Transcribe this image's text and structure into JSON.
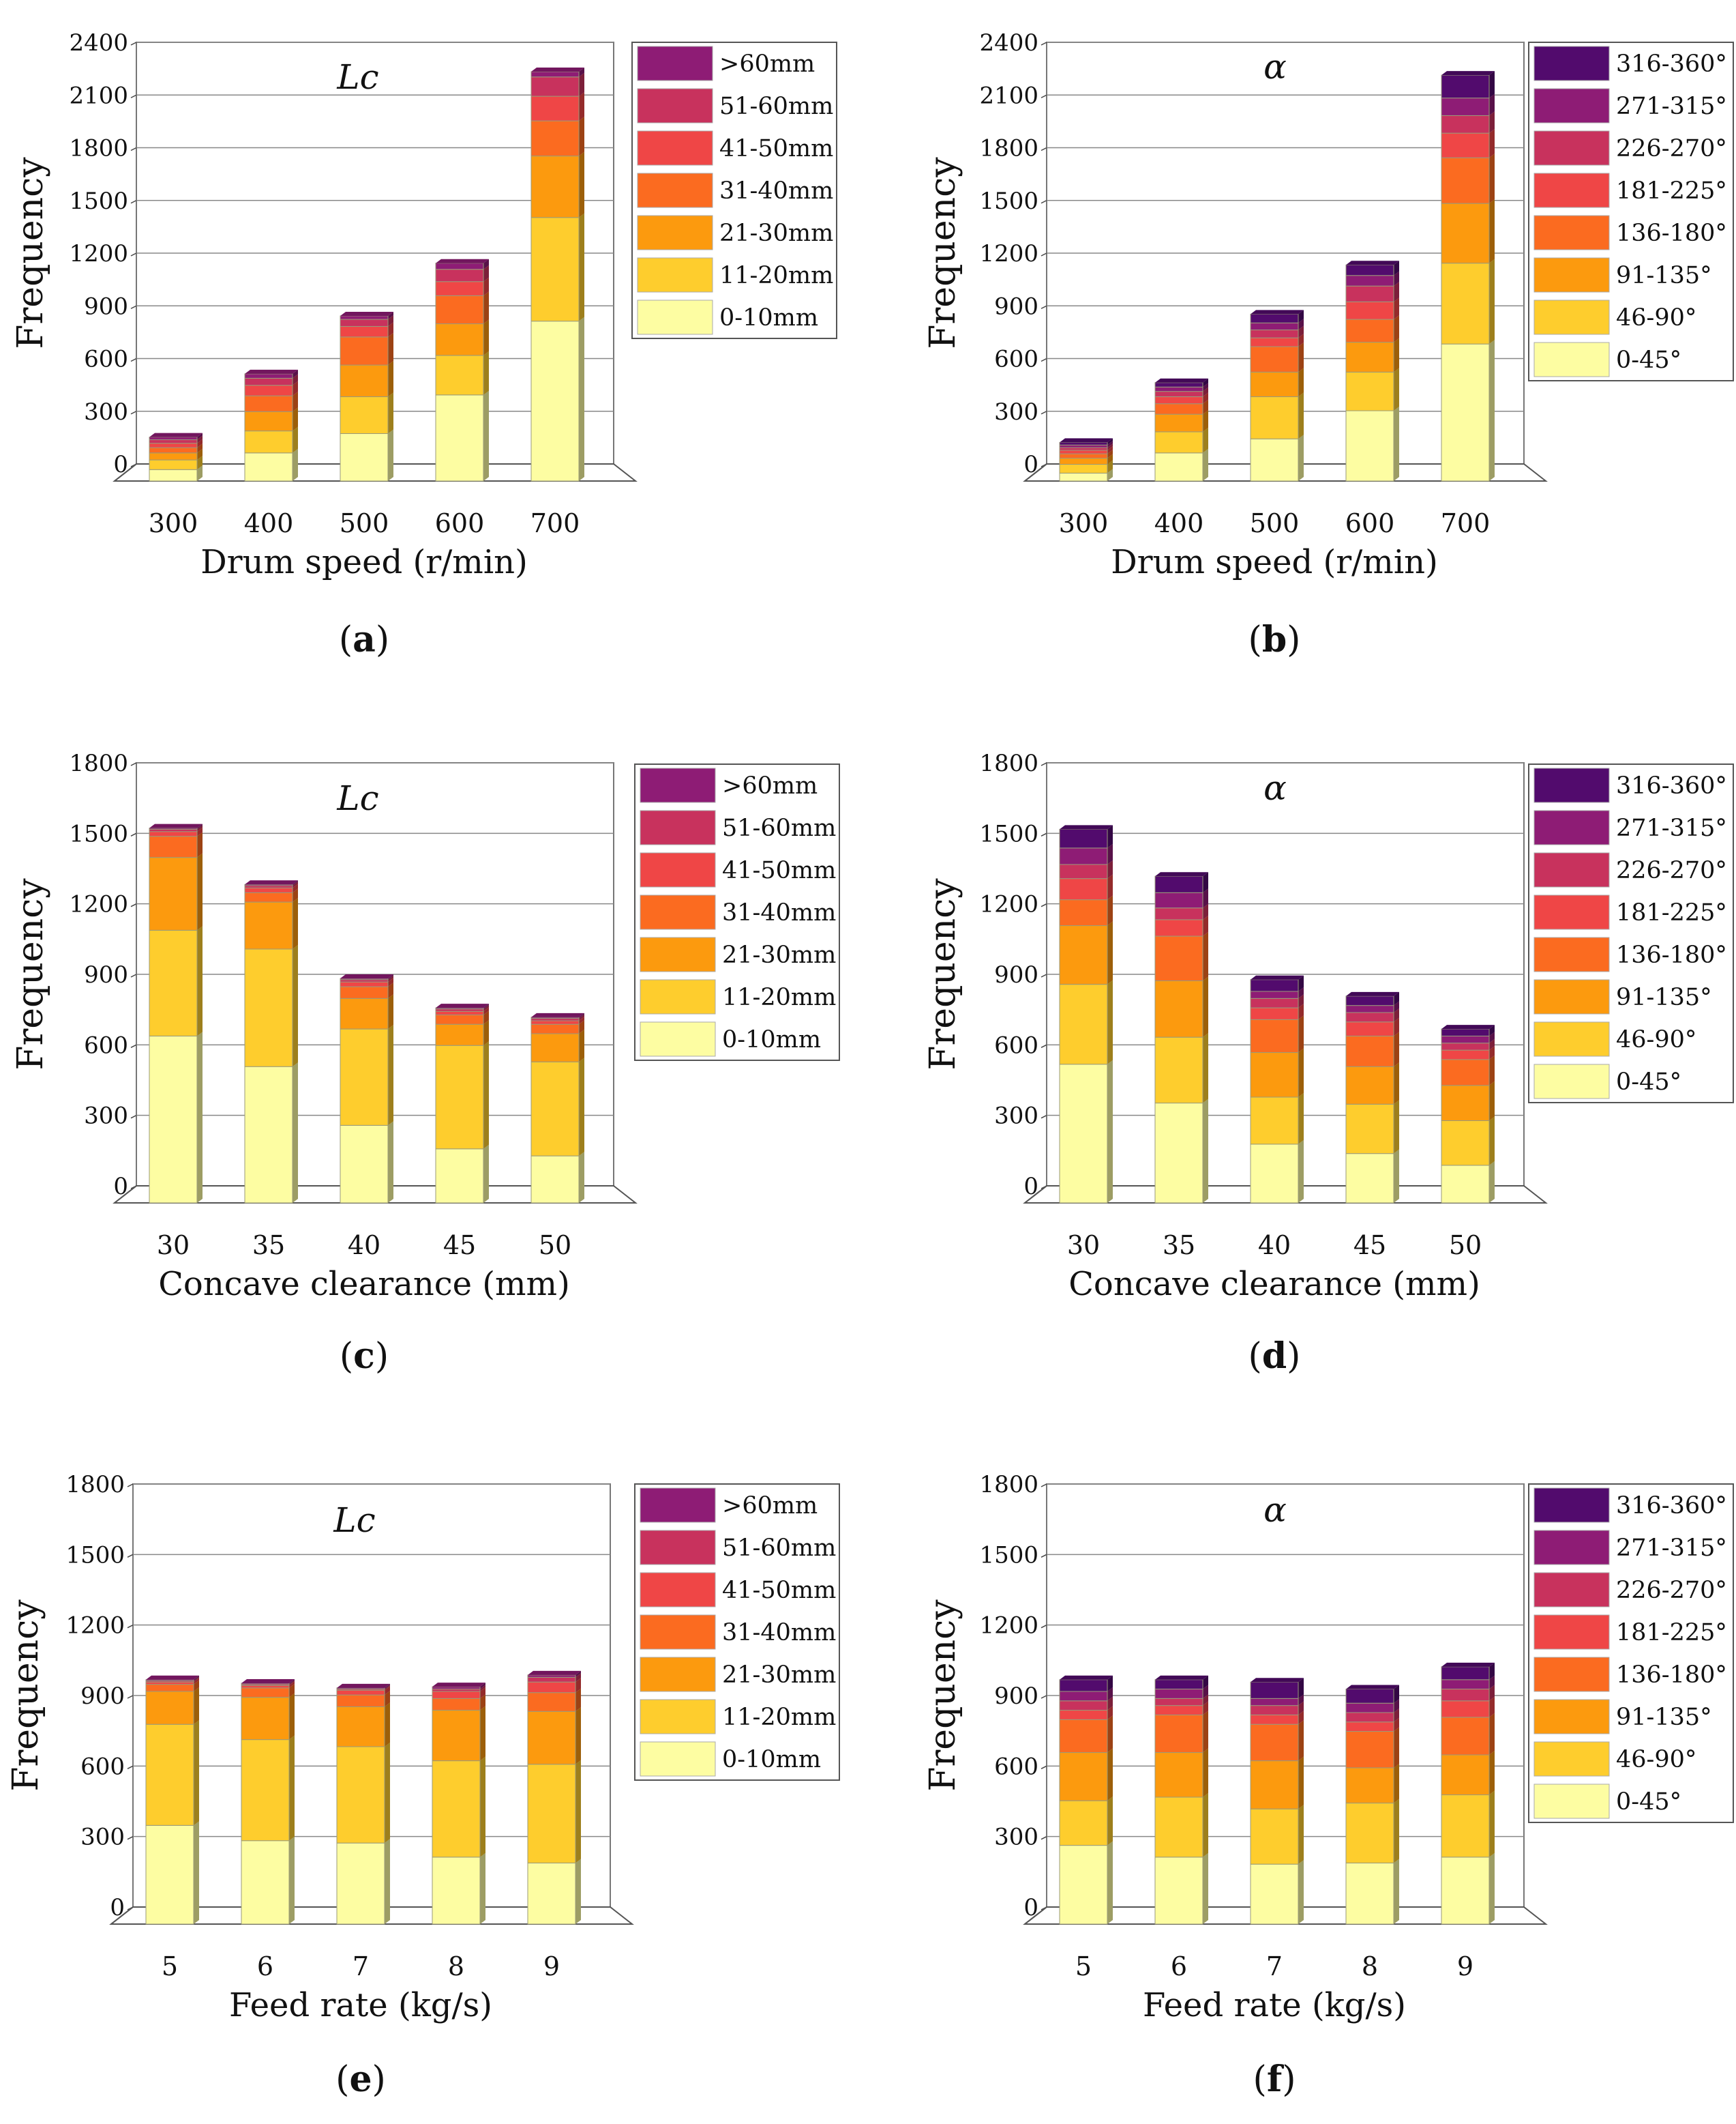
{
  "legend_lc": [
    ">60mm",
    "51-60mm",
    "41-50mm",
    "31-40mm",
    "21-30mm",
    "11-20mm",
    "0-10mm"
  ],
  "legend_alpha": [
    "316-360°",
    "271-315°",
    "226-270°",
    "181-225°",
    "136-180°",
    "91-135°",
    "46-90°",
    "0-45°"
  ],
  "colors_lc": [
    "#fdfda2",
    "#fecd2d",
    "#fc9a0e",
    "#fb6b20",
    "#ef4646",
    "#c8325d",
    "#8e1c75"
  ],
  "colors_alpha": [
    "#fdfda2",
    "#fecd2d",
    "#fc9a0e",
    "#fb6b20",
    "#ef4646",
    "#c8325d",
    "#8e1c75",
    "#520b6d"
  ],
  "ylabel": "Frequency",
  "chart_data": [
    {
      "type": "bar",
      "id": "a",
      "title": "Lc",
      "xlabel": "Drum speed (r/min)",
      "ylabel": "Frequency",
      "caption": {
        "open": "(",
        "letter": "a",
        "close": ")"
      },
      "categories": [
        "300",
        "400",
        "500",
        "600",
        "700"
      ],
      "yticks": [
        "0",
        "300",
        "600",
        "900",
        "1200",
        "1500",
        "1800",
        "2100",
        "2400"
      ],
      "ylim": [
        0,
        2400
      ],
      "series": [
        {
          "name": "0-10mm",
          "values": [
            65,
            160,
            270,
            490,
            910
          ]
        },
        {
          "name": "11-20mm",
          "values": [
            55,
            125,
            210,
            225,
            590
          ]
        },
        {
          "name": "21-30mm",
          "values": [
            40,
            110,
            180,
            180,
            350
          ]
        },
        {
          "name": "31-40mm",
          "values": [
            30,
            90,
            160,
            160,
            200
          ]
        },
        {
          "name": "41-50mm",
          "values": [
            25,
            60,
            60,
            80,
            140
          ]
        },
        {
          "name": "51-60mm",
          "values": [
            20,
            40,
            40,
            70,
            110
          ]
        },
        {
          "name": ">60mm",
          "values": [
            15,
            25,
            20,
            35,
            30
          ]
        }
      ]
    },
    {
      "type": "bar",
      "id": "b",
      "title": "α",
      "xlabel": "Drum speed (r/min)",
      "ylabel": "Frequency",
      "caption": {
        "open": "(",
        "letter": "b",
        "close": ")"
      },
      "categories": [
        "300",
        "400",
        "500",
        "600",
        "700"
      ],
      "yticks": [
        "0",
        "300",
        "600",
        "900",
        "1200",
        "1500",
        "1800",
        "2100",
        "2400"
      ],
      "ylim": [
        0,
        2400
      ],
      "series": [
        {
          "name": "0-45°",
          "values": [
            45,
            160,
            240,
            400,
            780
          ]
        },
        {
          "name": "46-90°",
          "values": [
            50,
            120,
            240,
            220,
            460
          ]
        },
        {
          "name": "91-135°",
          "values": [
            35,
            100,
            140,
            170,
            340
          ]
        },
        {
          "name": "136-180°",
          "values": [
            25,
            60,
            145,
            130,
            260
          ]
        },
        {
          "name": "181-225°",
          "values": [
            20,
            40,
            50,
            100,
            140
          ]
        },
        {
          "name": "226-270°",
          "values": [
            15,
            30,
            45,
            90,
            100
          ]
        },
        {
          "name": "271-315°",
          "values": [
            15,
            25,
            40,
            60,
            100
          ]
        },
        {
          "name": "316-360°",
          "values": [
            15,
            25,
            50,
            60,
            130
          ]
        }
      ]
    },
    {
      "type": "bar",
      "id": "c",
      "title": "Lc",
      "xlabel": "Concave clearance (mm)",
      "ylabel": "Frequency",
      "caption": {
        "open": "(",
        "letter": "c",
        "close": ")"
      },
      "categories": [
        "30",
        "35",
        "40",
        "45",
        "50"
      ],
      "yticks": [
        "0",
        "300",
        "600",
        "900",
        "1200",
        "1500",
        "1800"
      ],
      "ylim": [
        0,
        1800
      ],
      "series": [
        {
          "name": "0-10mm",
          "values": [
            710,
            580,
            330,
            230,
            200
          ]
        },
        {
          "name": "11-20mm",
          "values": [
            450,
            500,
            410,
            440,
            400
          ]
        },
        {
          "name": "21-30mm",
          "values": [
            310,
            200,
            130,
            90,
            120
          ]
        },
        {
          "name": "31-40mm",
          "values": [
            90,
            40,
            50,
            40,
            40
          ]
        },
        {
          "name": "41-50mm",
          "values": [
            20,
            20,
            20,
            15,
            15
          ]
        },
        {
          "name": "51-60mm",
          "values": [
            10,
            10,
            10,
            10,
            10
          ]
        },
        {
          "name": ">60mm",
          "values": [
            5,
            5,
            5,
            5,
            5
          ]
        }
      ]
    },
    {
      "type": "bar",
      "id": "d",
      "title": "α",
      "xlabel": "Concave clearance (mm)",
      "ylabel": "Frequency",
      "caption": {
        "open": "(",
        "letter": "d",
        "close": ")"
      },
      "categories": [
        "30",
        "35",
        "40",
        "45",
        "50"
      ],
      "yticks": [
        "0",
        "300",
        "600",
        "900",
        "1200",
        "1500",
        "1800"
      ],
      "ylim": [
        0,
        1800
      ],
      "series": [
        {
          "name": "0-45°",
          "values": [
            590,
            425,
            250,
            210,
            160
          ]
        },
        {
          "name": "46-90°",
          "values": [
            340,
            280,
            200,
            210,
            190
          ]
        },
        {
          "name": "91-135°",
          "values": [
            250,
            240,
            190,
            160,
            150
          ]
        },
        {
          "name": "136-180°",
          "values": [
            110,
            190,
            140,
            130,
            110
          ]
        },
        {
          "name": "181-225°",
          "values": [
            90,
            70,
            50,
            60,
            40
          ]
        },
        {
          "name": "226-270°",
          "values": [
            60,
            50,
            40,
            40,
            30
          ]
        },
        {
          "name": "271-315°",
          "values": [
            70,
            65,
            30,
            30,
            30
          ]
        },
        {
          "name": "316-360°",
          "values": [
            80,
            70,
            50,
            40,
            30
          ]
        }
      ]
    },
    {
      "type": "bar",
      "id": "e",
      "title": "Lc",
      "xlabel": "Feed rate (kg/s)",
      "ylabel": "Frequency",
      "caption": {
        "open": "(",
        "letter": "e",
        "close": ")"
      },
      "categories": [
        "5",
        "6",
        "7",
        "8",
        "9"
      ],
      "yticks": [
        "0",
        "300",
        "600",
        "900",
        "1200",
        "1500",
        "1800"
      ],
      "ylim": [
        0,
        1800
      ],
      "series": [
        {
          "name": "0-10mm",
          "values": [
            420,
            355,
            345,
            285,
            260
          ]
        },
        {
          "name": "11-20mm",
          "values": [
            430,
            430,
            410,
            410,
            420
          ]
        },
        {
          "name": "21-30mm",
          "values": [
            140,
            180,
            170,
            215,
            225
          ]
        },
        {
          "name": "31-40mm",
          "values": [
            30,
            40,
            50,
            50,
            80
          ]
        },
        {
          "name": "41-50mm",
          "values": [
            10,
            10,
            20,
            30,
            45
          ]
        },
        {
          "name": "51-60mm",
          "values": [
            5,
            5,
            5,
            10,
            20
          ]
        },
        {
          "name": ">60mm",
          "values": [
            5,
            5,
            5,
            10,
            10
          ]
        }
      ]
    },
    {
      "type": "bar",
      "id": "f",
      "title": "α",
      "xlabel": "Feed rate (kg/s)",
      "ylabel": "Frequency",
      "caption": {
        "open": "(",
        "letter": "f",
        "close": ")"
      },
      "categories": [
        "5",
        "6",
        "7",
        "8",
        "9"
      ],
      "yticks": [
        "0",
        "300",
        "600",
        "900",
        "1200",
        "1500",
        "1800"
      ],
      "ylim": [
        0,
        1800
      ],
      "series": [
        {
          "name": "0-45°",
          "values": [
            335,
            285,
            255,
            260,
            285
          ]
        },
        {
          "name": "46-90°",
          "values": [
            190,
            255,
            235,
            255,
            265
          ]
        },
        {
          "name": "91-135°",
          "values": [
            205,
            190,
            205,
            150,
            170
          ]
        },
        {
          "name": "136-180°",
          "values": [
            140,
            160,
            155,
            155,
            160
          ]
        },
        {
          "name": "181-225°",
          "values": [
            40,
            40,
            40,
            40,
            70
          ]
        },
        {
          "name": "226-270°",
          "values": [
            40,
            30,
            40,
            40,
            50
          ]
        },
        {
          "name": "271-315°",
          "values": [
            40,
            40,
            30,
            40,
            40
          ]
        },
        {
          "name": "316-360°",
          "values": [
            50,
            40,
            70,
            60,
            55
          ]
        }
      ]
    }
  ]
}
